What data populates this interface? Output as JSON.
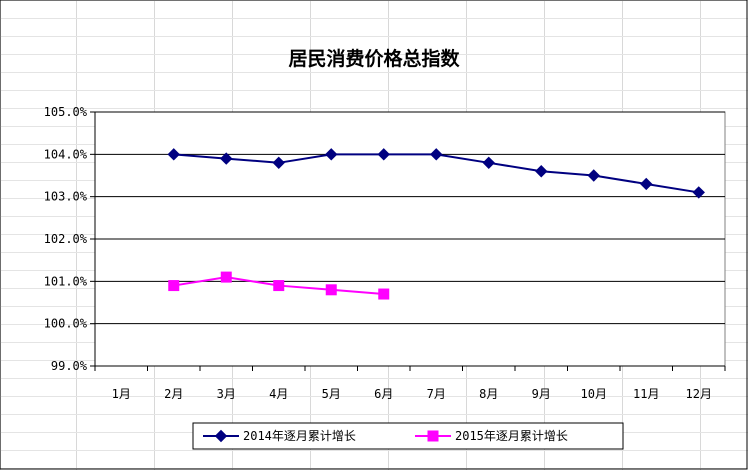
{
  "chart_data": {
    "type": "line",
    "title": "居民消费价格总指数",
    "xlabel": "",
    "ylabel": "",
    "categories": [
      "1月",
      "2月",
      "3月",
      "4月",
      "5月",
      "6月",
      "7月",
      "8月",
      "9月",
      "10月",
      "11月",
      "12月"
    ],
    "ylim": [
      99.0,
      105.0
    ],
    "yticks": [
      99.0,
      100.0,
      101.0,
      102.0,
      103.0,
      104.0,
      105.0
    ],
    "ytick_labels": [
      "99.0%",
      "100.0%",
      "101.0%",
      "102.0%",
      "103.0%",
      "104.0%",
      "105.0%"
    ],
    "grid": true,
    "legend_position": "bottom",
    "series": [
      {
        "name": "2014年逐月累计增长",
        "color": "#000080",
        "marker": "diamond",
        "values": [
          null,
          104.0,
          103.9,
          103.8,
          104.0,
          104.0,
          104.0,
          103.8,
          103.6,
          103.5,
          103.3,
          103.1
        ]
      },
      {
        "name": "2015年逐月累计增长",
        "color": "#ff00ff",
        "marker": "square",
        "values": [
          null,
          100.9,
          101.1,
          100.9,
          100.8,
          100.7,
          null,
          null,
          null,
          null,
          null,
          null
        ]
      }
    ]
  }
}
